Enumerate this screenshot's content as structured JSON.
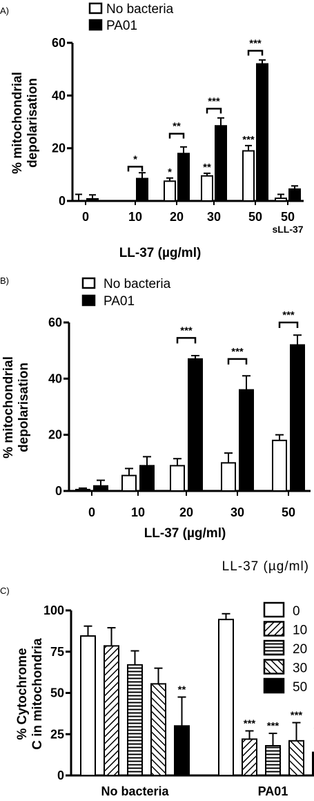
{
  "chart_data": [
    {
      "panel": "A)",
      "type": "bar",
      "ylabel": "% mitochondrial depolarisation",
      "xlabel": "LL-37 (µg/ml)",
      "ylim": [
        0,
        60
      ],
      "yticks": [
        "0",
        "20",
        "40",
        "60"
      ],
      "categories": [
        "0",
        "10",
        "20",
        "30",
        "50",
        "50"
      ],
      "category_sublabels": [
        "",
        "",
        "",
        "",
        "",
        "sLL-37"
      ],
      "series": [
        {
          "name": "No bacteria",
          "color": "#ffffff",
          "values": [
            0,
            0,
            7.5,
            9.5,
            19,
            1
          ],
          "errors": [
            2.5,
            0,
            1.2,
            1,
            2,
            1.5
          ]
        },
        {
          "name": "PA01",
          "color": "#000000",
          "values": [
            0.8,
            8.5,
            18,
            28.5,
            52,
            4.5
          ],
          "errors": [
            1.5,
            2.2,
            2.5,
            3,
            1.5,
            1.2
          ]
        }
      ],
      "bar_annotations": [
        {
          "category": 2,
          "series": 0,
          "text": "*"
        },
        {
          "category": 3,
          "series": 0,
          "text": "**"
        },
        {
          "category": 4,
          "series": 0,
          "text": "***"
        }
      ],
      "brackets": [
        {
          "category": 1,
          "text": "*",
          "y": 13
        },
        {
          "category": 2,
          "text": "**",
          "y": 25.5
        },
        {
          "category": 3,
          "text": "***",
          "y": 35
        },
        {
          "category": 4,
          "text": "***",
          "y": 57
        }
      ],
      "legend": "top-left"
    },
    {
      "panel": "B)",
      "type": "bar",
      "ylabel": "% mitochondrial depolarisation",
      "xlabel": "LL-37 (µg/ml)",
      "ylim": [
        0,
        60
      ],
      "yticks": [
        "0",
        "20",
        "40",
        "60"
      ],
      "categories": [
        "0",
        "10",
        "20",
        "30",
        "50"
      ],
      "series": [
        {
          "name": "No bacteria",
          "color": "#ffffff",
          "values": [
            0.5,
            5.5,
            9,
            10,
            18
          ],
          "errors": [
            0.5,
            2.5,
            2.5,
            3.5,
            2
          ]
        },
        {
          "name": "PA01",
          "color": "#000000",
          "values": [
            1.8,
            9,
            47,
            36,
            52
          ],
          "errors": [
            2,
            3.2,
            1.2,
            5,
            3.5
          ]
        }
      ],
      "brackets": [
        {
          "category": 2,
          "text": "***",
          "y": 54.5
        },
        {
          "category": 3,
          "text": "***",
          "y": 47
        },
        {
          "category": 4,
          "text": "***",
          "y": 60
        }
      ],
      "legend": "top-left"
    },
    {
      "panel": "C)",
      "type": "bar",
      "ylabel": "% Cytochrome C in mitochondria",
      "ylim": [
        0,
        100
      ],
      "yticks": [
        "0",
        "25",
        "50",
        "75",
        "100"
      ],
      "categories": [
        "No bacteria",
        "PA01"
      ],
      "legend_title": "LL-37 (µg/ml)",
      "series": [
        {
          "name": "0",
          "pattern": "white",
          "values": [
            84.5,
            94.5
          ],
          "errors": [
            6,
            3.5
          ]
        },
        {
          "name": "10",
          "pattern": "diag-right",
          "values": [
            78.5,
            22
          ],
          "errors": [
            11,
            5
          ]
        },
        {
          "name": "20",
          "pattern": "horizontal",
          "values": [
            67,
            18
          ],
          "errors": [
            8.5,
            7.5
          ]
        },
        {
          "name": "30",
          "pattern": "diag-left",
          "values": [
            55.5,
            21
          ],
          "errors": [
            9.5,
            11
          ]
        },
        {
          "name": "50",
          "pattern": "black",
          "values": [
            30,
            14
          ],
          "errors": [
            17.5,
            9
          ]
        }
      ],
      "bar_annotations": [
        {
          "category": 0,
          "series": 4,
          "text": "**"
        },
        {
          "category": 1,
          "series": 1,
          "text": "***"
        },
        {
          "category": 1,
          "series": 2,
          "text": "***"
        },
        {
          "category": 1,
          "series": 3,
          "text": "***"
        },
        {
          "category": 1,
          "series": 4,
          "text": "***"
        }
      ],
      "legend": "right"
    }
  ]
}
